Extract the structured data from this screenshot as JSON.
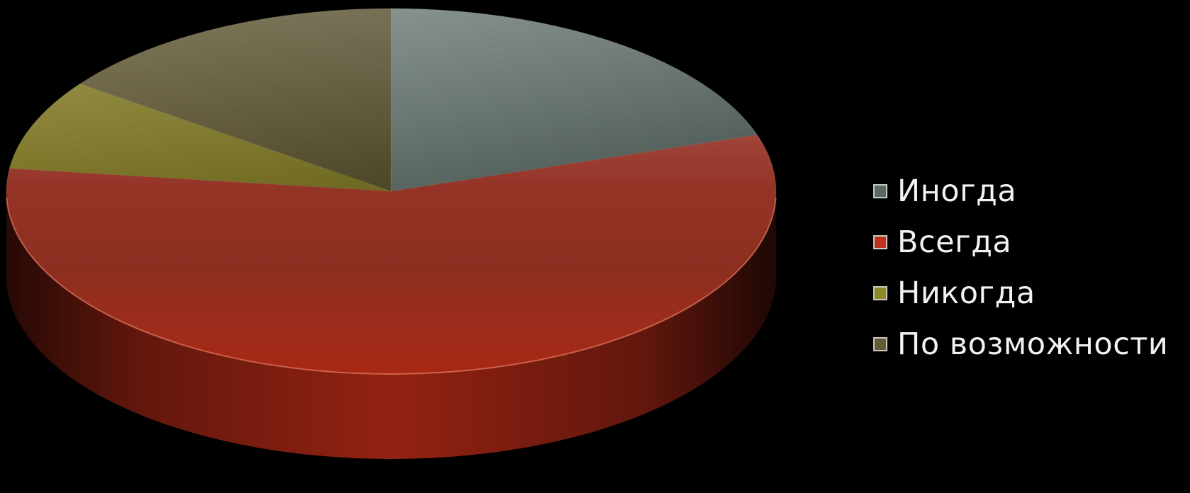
{
  "chart_data": {
    "type": "pie",
    "title": "",
    "series": [
      {
        "values": [
          20,
          57,
          8,
          15
        ]
      }
    ],
    "categories": [
      "Иногда",
      "Всегда",
      "Никогда",
      "По возможности"
    ],
    "legend": {
      "placement": "right",
      "items": [
        {
          "label": "Иногда",
          "color": "#5a6a62"
        },
        {
          "label": "Всегда",
          "color": "#c0321f"
        },
        {
          "label": "Никогда",
          "color": "#8c8a25"
        },
        {
          "label": "По возможности",
          "color": "#625c36"
        }
      ]
    },
    "colors": {
      "Иногда": "#56645c",
      "Всегда": "#8e2818",
      "Никогда": "#7a7424",
      "По возможности": "#5a5230"
    },
    "style": "3d",
    "background": "#000000"
  }
}
